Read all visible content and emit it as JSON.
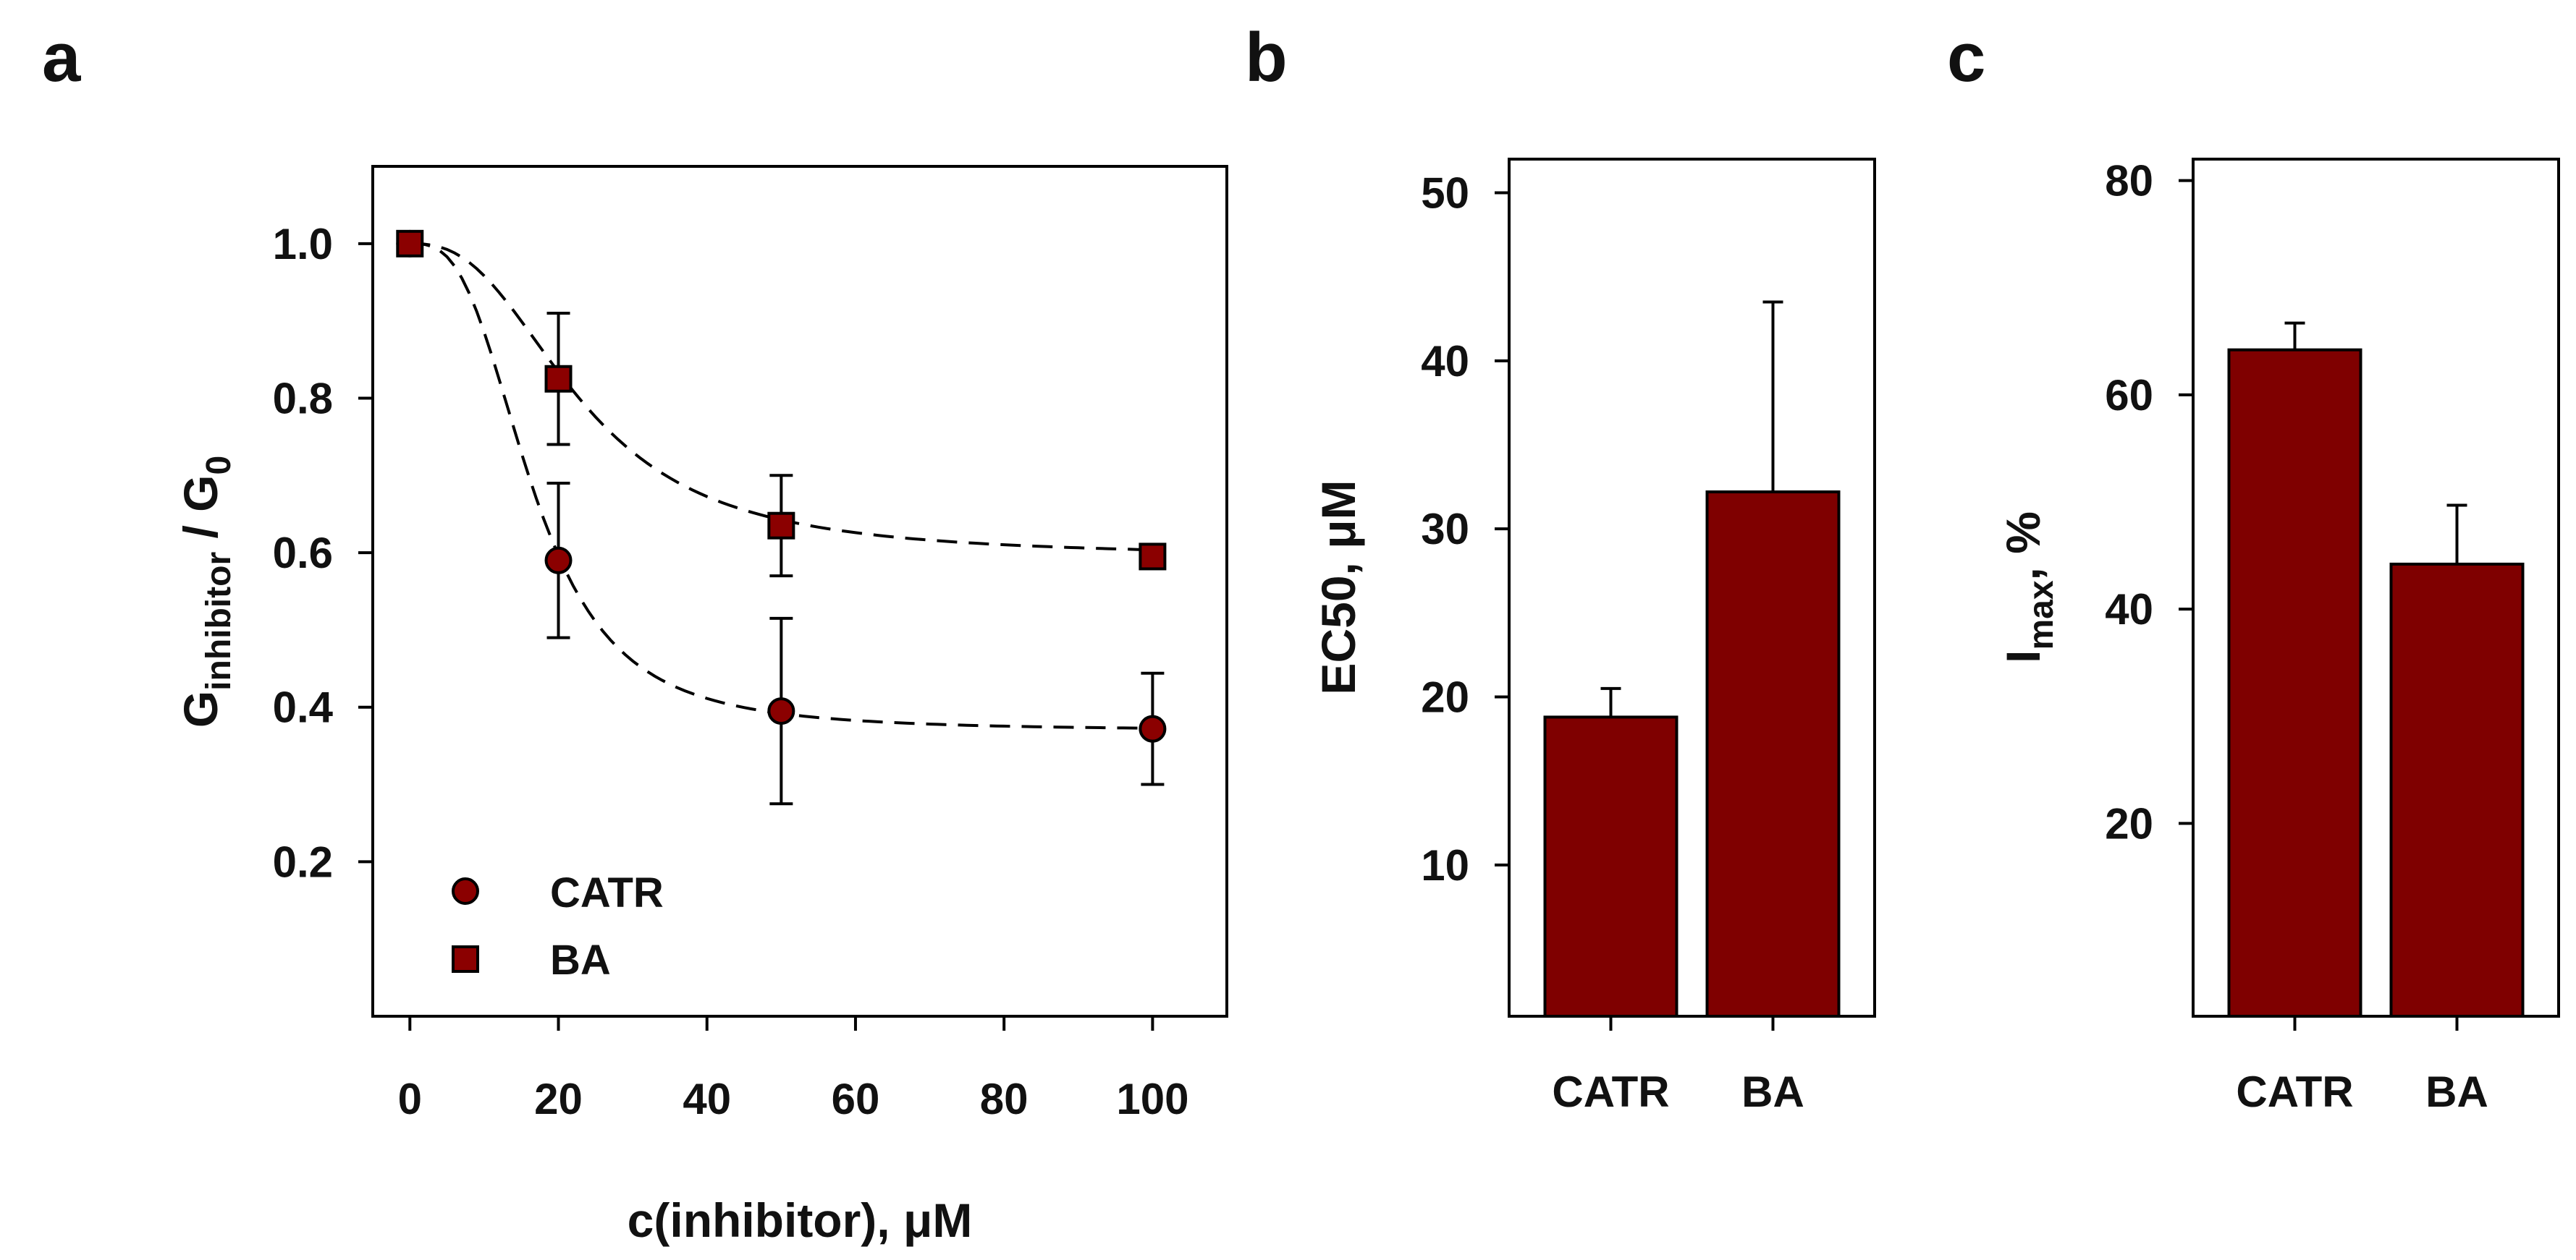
{
  "figure_labels": {
    "a": "a",
    "b": "b",
    "c": "c"
  },
  "colors": {
    "bar": "#7f0000",
    "marker": "#8b0000",
    "outline": "#000000"
  },
  "chart_data": [
    {
      "panel": "a",
      "type": "scatter",
      "xlabel": "c(inhibitor), μM",
      "ylabel_main": "G",
      "ylabel_sub": "inhibitor",
      "ylabel_sep": " / G",
      "ylabel_sub2": "0",
      "xlim": [
        -5,
        110
      ],
      "ylim": [
        0.0,
        1.1
      ],
      "xticks": [
        0,
        20,
        40,
        60,
        80,
        100
      ],
      "xtick_labels": [
        "0",
        "20",
        "40",
        "60",
        "80",
        "100"
      ],
      "yticks": [
        0.2,
        0.4,
        0.6,
        0.8,
        1.0
      ],
      "ytick_labels": [
        "0.2",
        "0.4",
        "0.6",
        "0.8",
        "1.0"
      ],
      "legend_position": "bottom-left",
      "series": [
        {
          "name": "CATR",
          "marker": "circle",
          "x": [
            0,
            20,
            50,
            100
          ],
          "y": [
            1.0,
            0.59,
            0.395,
            0.372
          ],
          "yerr": [
            0.0,
            0.1,
            0.12,
            0.072
          ],
          "fit": {
            "bottom": 0.37,
            "ec50": 16.5,
            "hill": 3.0
          }
        },
        {
          "name": "BA",
          "marker": "square",
          "x": [
            0,
            20,
            50,
            100
          ],
          "y": [
            1.0,
            0.825,
            0.635,
            0.595
          ],
          "yerr": [
            0.0,
            0.085,
            0.065,
            0.0
          ],
          "fit": {
            "bottom": 0.595,
            "ec50": 23,
            "hill": 2.6
          }
        }
      ]
    },
    {
      "panel": "b",
      "type": "bar",
      "categories": [
        "CATR",
        "BA"
      ],
      "values": [
        18.8,
        32.2
      ],
      "errors": [
        1.7,
        11.3
      ],
      "ylabel": "EC50, μM",
      "ylim": [
        1,
        52
      ],
      "yticks": [
        10,
        20,
        30,
        40,
        50
      ],
      "ytick_labels": [
        "10",
        "20",
        "30",
        "40",
        "50"
      ]
    },
    {
      "panel": "c",
      "type": "bar",
      "categories": [
        "CATR",
        "BA"
      ],
      "values": [
        64.2,
        44.2
      ],
      "errors": [
        2.5,
        5.5
      ],
      "ylabel_main": "I",
      "ylabel_sub": "max",
      "ylabel_rest": ", %",
      "ylim": [
        2,
        82
      ],
      "yticks": [
        20,
        40,
        60,
        80
      ],
      "ytick_labels": [
        "20",
        "40",
        "60",
        "80"
      ]
    }
  ]
}
